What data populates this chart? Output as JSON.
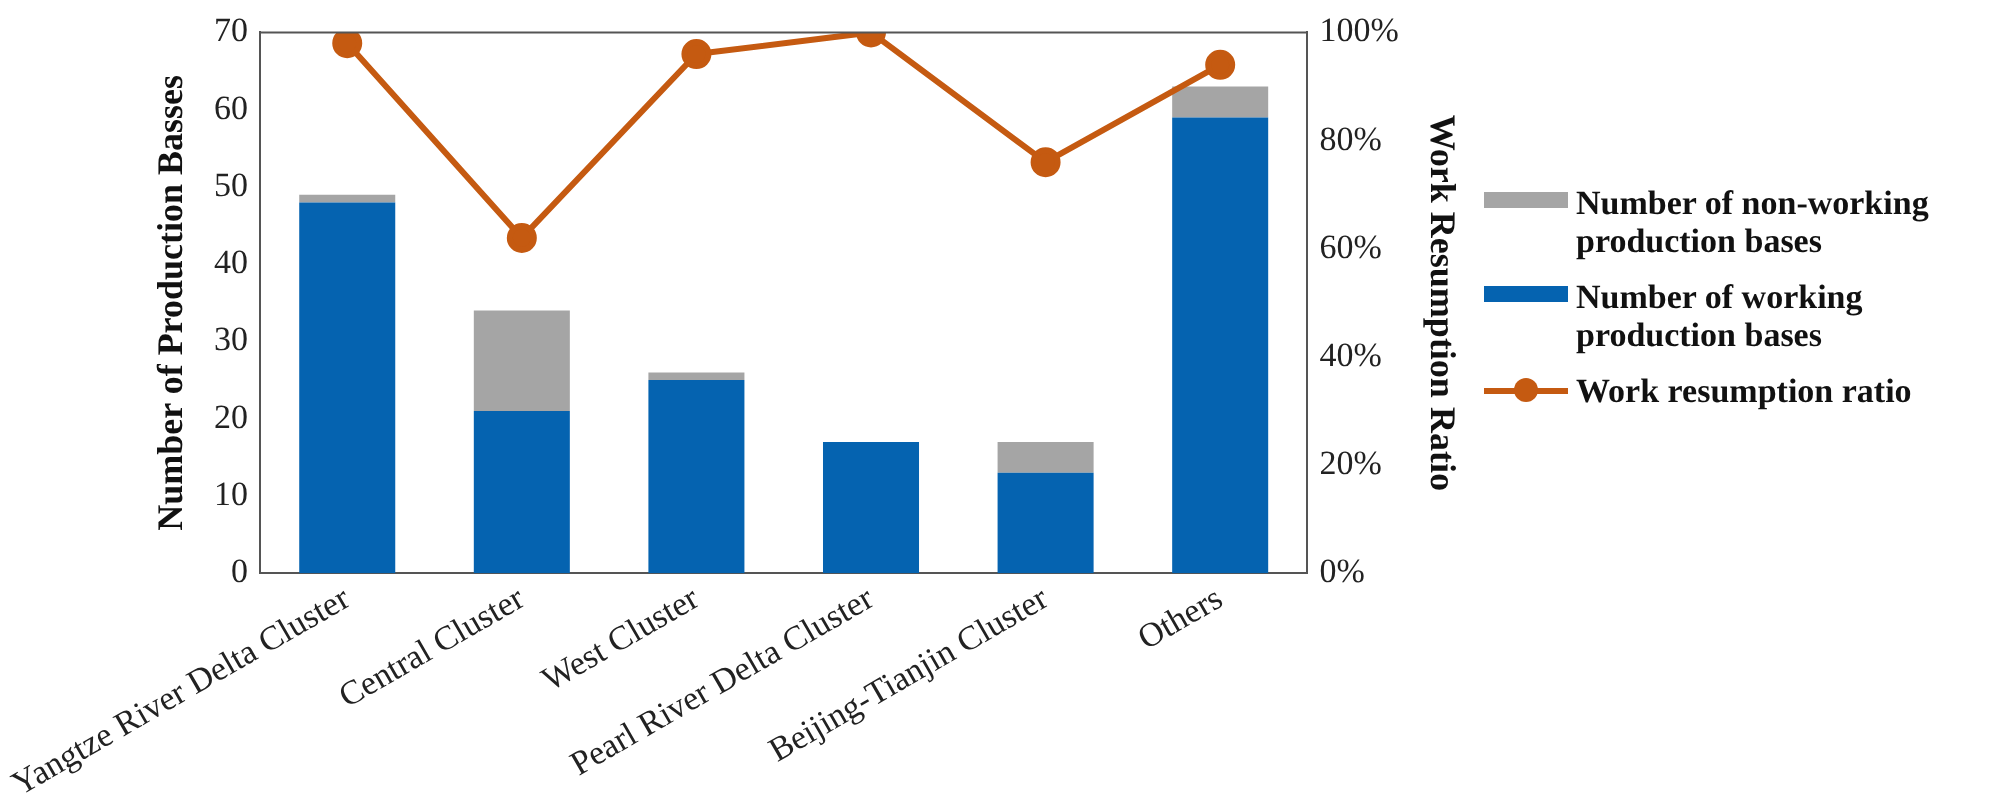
{
  "chart_data": {
    "type": "bar",
    "stacked": true,
    "categories": [
      "Yangtze River Delta Cluster",
      "Central Cluster",
      "West Cluster",
      "Pearl River Delta Cluster",
      "Beijing-Tianjin Cluster",
      "Others"
    ],
    "ylabel": "Number of Production Basses",
    "y2label": "Work Resumption Ratio",
    "ylim": [
      0,
      70
    ],
    "yticks": [
      0,
      10,
      20,
      30,
      40,
      50,
      60,
      70
    ],
    "y2lim": [
      0,
      100
    ],
    "y2ticks": [
      {
        "value": 0,
        "label": "0%"
      },
      {
        "value": 20,
        "label": "20%"
      },
      {
        "value": 40,
        "label": "40%"
      },
      {
        "value": 60,
        "label": "60%"
      },
      {
        "value": 80,
        "label": "80%"
      },
      {
        "value": 100,
        "label": "100%"
      }
    ],
    "grid": false,
    "legend": "right",
    "series": [
      {
        "name": "Number of working production bases",
        "color": "#0563b0",
        "values": [
          48,
          21,
          25,
          17,
          13,
          59
        ]
      },
      {
        "name": "Number of non-working production bases",
        "color": "#a5a5a5",
        "values": [
          1,
          13,
          1,
          0,
          4,
          4
        ]
      },
      {
        "name": "Work resumption ratio",
        "type": "line",
        "axis": "y2",
        "color": "#c55a11",
        "marker": "circle",
        "values": [
          98,
          62,
          96,
          100,
          76,
          94
        ]
      }
    ]
  }
}
